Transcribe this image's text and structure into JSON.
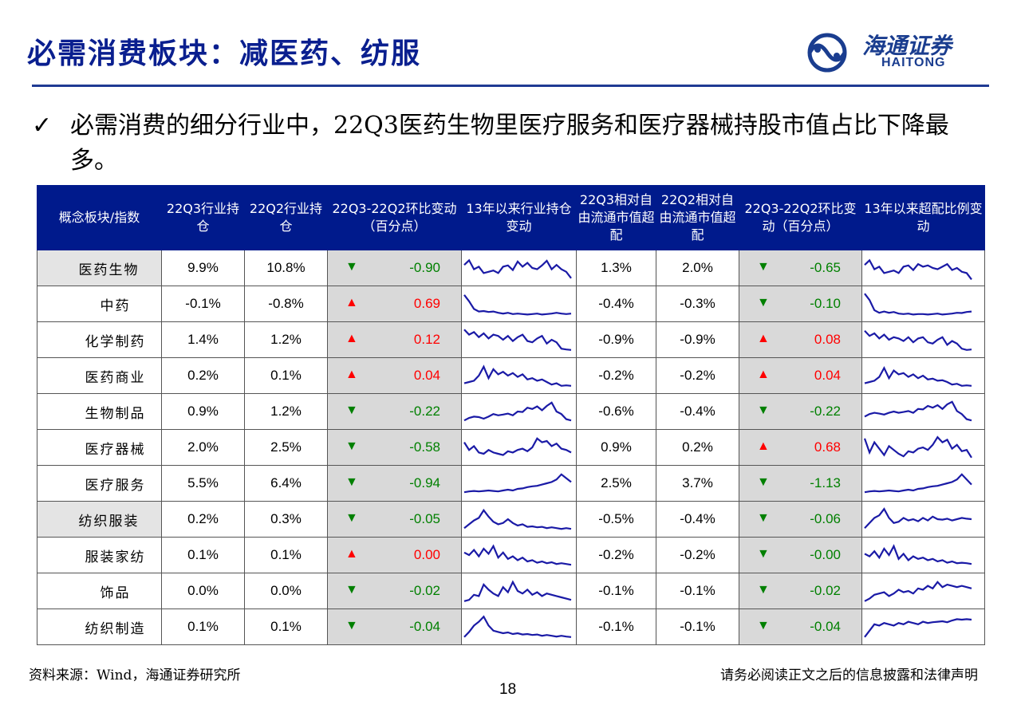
{
  "title": "必需消费板块：减医药、纺服",
  "logo": {
    "cn": "海通证券",
    "en": "HAITONG"
  },
  "bullet": {
    "mark": "✓",
    "text": "必需消费的细分行业中，22Q3医药生物里医疗服务和医疗器械持股市值占比下降最多。"
  },
  "colors": {
    "header_bg": "#001a8c",
    "title": "#0a1f8f",
    "up": "#ff0000",
    "down": "#008000",
    "sparkline": "#1a1aa6"
  },
  "table": {
    "headers": [
      "概念板块/指数",
      "22Q3行业持仓",
      "22Q2行业持仓",
      "22Q3-22Q2环比变动（百分点）",
      "13年以来行业持仓变动",
      "22Q3相对自由流通市值超配",
      "22Q2相对自由流通市值超配",
      "22Q3-22Q2环比变动（百分点）",
      "13年以来超配比例变动"
    ],
    "rows": [
      {
        "name": "医药生物",
        "level": 0,
        "q3": "9.9%",
        "q2": "10.8%",
        "chg_dir": "down",
        "chg": "-0.90",
        "q3_over": "1.3%",
        "q2_over": "2.0%",
        "over_dir": "down",
        "over_chg": "-0.65",
        "spark1": [
          0.62,
          0.8,
          0.45,
          0.55,
          0.3,
          0.35,
          0.4,
          0.3,
          0.55,
          0.6,
          0.42,
          0.75,
          0.55,
          0.7,
          0.5,
          0.45,
          0.6,
          0.78,
          0.45,
          0.62,
          0.45,
          0.35,
          0.1
        ],
        "spark2": [
          0.62,
          0.8,
          0.45,
          0.55,
          0.3,
          0.35,
          0.4,
          0.3,
          0.55,
          0.6,
          0.42,
          0.65,
          0.55,
          0.6,
          0.5,
          0.45,
          0.55,
          0.65,
          0.42,
          0.5,
          0.35,
          0.3,
          0.05
        ]
      },
      {
        "name": "中药",
        "level": 1,
        "q3": "-0.1%",
        "q2": "-0.8%",
        "chg_dir": "up",
        "chg": "0.69",
        "q3_over": "-0.4%",
        "q2_over": "-0.3%",
        "over_dir": "down",
        "over_chg": "-0.10",
        "spark1": [
          0.85,
          0.6,
          0.3,
          0.2,
          0.22,
          0.18,
          0.2,
          0.15,
          0.12,
          0.15,
          0.1,
          0.12,
          0.1,
          0.08,
          0.1,
          0.12,
          0.08,
          0.1,
          0.12,
          0.15,
          0.12,
          0.1,
          0.12
        ],
        "spark2": [
          0.9,
          0.65,
          0.25,
          0.15,
          0.2,
          0.15,
          0.18,
          0.12,
          0.1,
          0.12,
          0.08,
          0.1,
          0.1,
          0.08,
          0.1,
          0.12,
          0.08,
          0.1,
          0.12,
          0.15,
          0.14,
          0.18,
          0.2
        ]
      },
      {
        "name": "化学制药",
        "level": 1,
        "q3": "1.4%",
        "q2": "1.2%",
        "chg_dir": "up",
        "chg": "0.12",
        "q3_over": "-0.9%",
        "q2_over": "-0.9%",
        "over_dir": "up",
        "over_chg": "0.08",
        "spark1": [
          0.9,
          0.7,
          0.8,
          0.6,
          0.75,
          0.55,
          0.7,
          0.65,
          0.5,
          0.65,
          0.45,
          0.6,
          0.7,
          0.45,
          0.4,
          0.55,
          0.65,
          0.35,
          0.5,
          0.4,
          0.15,
          0.12,
          0.1
        ],
        "spark2": [
          0.85,
          0.65,
          0.75,
          0.55,
          0.7,
          0.5,
          0.6,
          0.55,
          0.45,
          0.6,
          0.4,
          0.55,
          0.6,
          0.4,
          0.35,
          0.5,
          0.6,
          0.3,
          0.45,
          0.35,
          0.15,
          0.1,
          0.12
        ]
      },
      {
        "name": "医药商业",
        "level": 1,
        "q3": "0.2%",
        "q2": "0.1%",
        "chg_dir": "up",
        "chg": "0.04",
        "q3_over": "-0.2%",
        "q2_over": "-0.2%",
        "over_dir": "up",
        "over_chg": "0.04",
        "spark1": [
          0.2,
          0.25,
          0.3,
          0.5,
          0.85,
          0.4,
          0.75,
          0.55,
          0.65,
          0.5,
          0.6,
          0.45,
          0.55,
          0.35,
          0.4,
          0.3,
          0.35,
          0.25,
          0.15,
          0.2,
          0.1,
          0.12,
          0.1
        ],
        "spark2": [
          0.2,
          0.25,
          0.3,
          0.45,
          0.8,
          0.4,
          0.7,
          0.55,
          0.6,
          0.45,
          0.55,
          0.4,
          0.5,
          0.35,
          0.38,
          0.3,
          0.32,
          0.25,
          0.15,
          0.18,
          0.1,
          0.12,
          0.1
        ]
      },
      {
        "name": "生物制品",
        "level": 1,
        "q3": "0.9%",
        "q2": "1.2%",
        "chg_dir": "down",
        "chg": "-0.22",
        "q3_over": "-0.6%",
        "q2_over": "-0.4%",
        "over_dir": "down",
        "over_chg": "-0.22",
        "spark1": [
          0.15,
          0.25,
          0.3,
          0.28,
          0.22,
          0.3,
          0.4,
          0.35,
          0.38,
          0.42,
          0.35,
          0.5,
          0.48,
          0.65,
          0.6,
          0.7,
          0.55,
          0.72,
          0.85,
          0.5,
          0.4,
          0.2,
          0.15
        ],
        "spark2": [
          0.3,
          0.4,
          0.45,
          0.42,
          0.38,
          0.45,
          0.5,
          0.45,
          0.48,
          0.52,
          0.45,
          0.6,
          0.58,
          0.72,
          0.65,
          0.75,
          0.6,
          0.78,
          0.88,
          0.52,
          0.4,
          0.2,
          0.15
        ]
      },
      {
        "name": "医疗器械",
        "level": 1,
        "q3": "2.0%",
        "q2": "2.5%",
        "chg_dir": "down",
        "chg": "-0.58",
        "q3_over": "0.9%",
        "q2_over": "0.2%",
        "over_dir": "up",
        "over_chg": "0.68",
        "spark1": [
          0.7,
          0.4,
          0.55,
          0.3,
          0.25,
          0.4,
          0.3,
          0.25,
          0.2,
          0.35,
          0.3,
          0.4,
          0.45,
          0.35,
          0.5,
          0.85,
          0.7,
          0.75,
          0.55,
          0.65,
          0.45,
          0.4,
          0.3
        ],
        "spark2": [
          0.85,
          0.3,
          0.7,
          0.45,
          0.2,
          0.55,
          0.4,
          0.25,
          0.15,
          0.35,
          0.3,
          0.45,
          0.5,
          0.4,
          0.6,
          0.9,
          0.7,
          0.8,
          0.45,
          0.6,
          0.35,
          0.4,
          0.1
        ]
      },
      {
        "name": "医疗服务",
        "level": 1,
        "q3": "5.5%",
        "q2": "6.4%",
        "chg_dir": "down",
        "chg": "-0.94",
        "q3_over": "2.5%",
        "q2_over": "3.7%",
        "over_dir": "down",
        "over_chg": "-1.13",
        "spark1": [
          0.15,
          0.18,
          0.2,
          0.18,
          0.2,
          0.22,
          0.2,
          0.18,
          0.22,
          0.25,
          0.22,
          0.28,
          0.3,
          0.35,
          0.38,
          0.4,
          0.45,
          0.5,
          0.55,
          0.65,
          0.85,
          0.7,
          0.55
        ],
        "spark2": [
          0.15,
          0.18,
          0.2,
          0.18,
          0.2,
          0.22,
          0.2,
          0.18,
          0.22,
          0.25,
          0.22,
          0.28,
          0.3,
          0.35,
          0.38,
          0.4,
          0.45,
          0.5,
          0.55,
          0.65,
          0.85,
          0.65,
          0.45
        ]
      },
      {
        "name": "纺织服装",
        "level": 0,
        "q3": "0.2%",
        "q2": "0.3%",
        "chg_dir": "down",
        "chg": "-0.05",
        "q3_over": "-0.5%",
        "q2_over": "-0.4%",
        "over_dir": "down",
        "over_chg": "-0.06",
        "spark1": [
          0.15,
          0.3,
          0.45,
          0.55,
          0.85,
          0.6,
          0.4,
          0.3,
          0.35,
          0.5,
          0.35,
          0.25,
          0.3,
          0.2,
          0.22,
          0.18,
          0.2,
          0.15,
          0.18,
          0.15,
          0.12,
          0.15,
          0.12
        ],
        "spark2": [
          0.15,
          0.35,
          0.55,
          0.65,
          0.9,
          0.55,
          0.35,
          0.4,
          0.55,
          0.45,
          0.5,
          0.42,
          0.55,
          0.45,
          0.6,
          0.5,
          0.48,
          0.52,
          0.45,
          0.5,
          0.55,
          0.52,
          0.5
        ]
      },
      {
        "name": "服装家纺",
        "level": 1,
        "q3": "0.1%",
        "q2": "0.1%",
        "chg_dir": "up",
        "chg": "0.00",
        "q3_over": "-0.2%",
        "q2_over": "-0.2%",
        "over_dir": "down",
        "over_chg": "-0.00",
        "spark1": [
          0.6,
          0.5,
          0.7,
          0.45,
          0.75,
          0.55,
          0.85,
          0.4,
          0.6,
          0.35,
          0.45,
          0.3,
          0.4,
          0.25,
          0.3,
          0.2,
          0.25,
          0.18,
          0.22,
          0.15,
          0.18,
          0.15,
          0.12
        ],
        "spark2": [
          0.55,
          0.45,
          0.65,
          0.4,
          0.75,
          0.5,
          0.85,
          0.35,
          0.55,
          0.3,
          0.45,
          0.35,
          0.4,
          0.3,
          0.35,
          0.25,
          0.3,
          0.2,
          0.25,
          0.18,
          0.2,
          0.18,
          0.15
        ]
      },
      {
        "name": "饰品",
        "level": 1,
        "q3": "0.0%",
        "q2": "0.0%",
        "chg_dir": "down",
        "chg": "-0.02",
        "q3_over": "-0.1%",
        "q2_over": "-0.1%",
        "over_dir": "down",
        "over_chg": "-0.02",
        "spark1": [
          0.1,
          0.15,
          0.35,
          0.3,
          0.75,
          0.55,
          0.4,
          0.3,
          0.65,
          0.45,
          0.85,
          0.5,
          0.4,
          0.55,
          0.35,
          0.45,
          0.3,
          0.4,
          0.35,
          0.3,
          0.25,
          0.2,
          0.15
        ],
        "spark2": [
          0.1,
          0.2,
          0.35,
          0.4,
          0.45,
          0.3,
          0.4,
          0.55,
          0.45,
          0.5,
          0.4,
          0.6,
          0.55,
          0.7,
          0.6,
          0.85,
          0.65,
          0.75,
          0.7,
          0.65,
          0.7,
          0.65,
          0.6
        ]
      },
      {
        "name": "纺织制造",
        "level": 1,
        "q3": "0.1%",
        "q2": "0.1%",
        "chg_dir": "down",
        "chg": "-0.04",
        "q3_over": "-0.1%",
        "q2_over": "-0.1%",
        "over_dir": "down",
        "over_chg": "-0.04",
        "spark1": [
          0.1,
          0.3,
          0.55,
          0.7,
          0.9,
          0.55,
          0.35,
          0.3,
          0.25,
          0.28,
          0.22,
          0.25,
          0.2,
          0.22,
          0.18,
          0.2,
          0.15,
          0.18,
          0.15,
          0.12,
          0.15,
          0.12,
          0.1
        ],
        "spark2": [
          0.1,
          0.35,
          0.6,
          0.55,
          0.65,
          0.6,
          0.55,
          0.65,
          0.6,
          0.7,
          0.65,
          0.6,
          0.7,
          0.65,
          0.68,
          0.7,
          0.72,
          0.68,
          0.75,
          0.8,
          0.78,
          0.8,
          0.78
        ]
      }
    ]
  },
  "source": "资料来源：Wind，海通证券研究所",
  "disclaimer": "请务必阅读正文之后的信息披露和法律声明",
  "page_number": "18"
}
